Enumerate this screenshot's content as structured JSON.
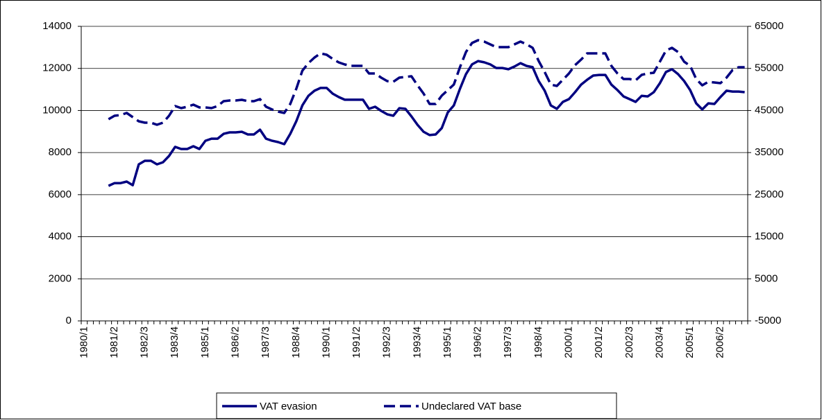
{
  "chart_data": {
    "type": "line",
    "categories": [
      "1980/1",
      null,
      null,
      null,
      null,
      "1981/2",
      null,
      null,
      null,
      null,
      "1982/3",
      null,
      null,
      null,
      null,
      "1983/4",
      null,
      null,
      null,
      null,
      "1985/1",
      null,
      null,
      null,
      null,
      "1986/2",
      null,
      null,
      null,
      null,
      "1987/3",
      null,
      null,
      null,
      null,
      "1988/4",
      null,
      null,
      null,
      null,
      "1990/1",
      null,
      null,
      null,
      null,
      "1991/2",
      null,
      null,
      null,
      null,
      "1992/3",
      null,
      null,
      null,
      null,
      "1993/4",
      null,
      null,
      null,
      null,
      "1995/1",
      null,
      null,
      null,
      null,
      "1996/2",
      null,
      null,
      null,
      null,
      "1997/3",
      null,
      null,
      null,
      null,
      "1998/4",
      null,
      null,
      null,
      null,
      "2000/1",
      null,
      null,
      null,
      null,
      "2001/2",
      null,
      null,
      null,
      null,
      "2002/3",
      null,
      null,
      null,
      null,
      "2003/4",
      null,
      null,
      null,
      null,
      "2005/1",
      null,
      null,
      null,
      null,
      "2006/2",
      null,
      null,
      null,
      null
    ],
    "series": [
      {
        "name": "VAT evasion",
        "color": "#000080",
        "axis": "y",
        "values": [
          null,
          null,
          null,
          null,
          6420,
          6550,
          6550,
          6620,
          6450,
          7440,
          7610,
          7610,
          7440,
          7540,
          7840,
          8270,
          8170,
          8170,
          8300,
          8170,
          8560,
          8660,
          8660,
          8890,
          8960,
          8960,
          8990,
          8860,
          8860,
          9090,
          8660,
          8560,
          8500,
          8400,
          8890,
          9490,
          10240,
          10700,
          10940,
          11070,
          11070,
          10800,
          10640,
          10510,
          10510,
          10510,
          10510,
          10080,
          10180,
          9980,
          9820,
          9750,
          10110,
          10080,
          9720,
          9320,
          8990,
          8830,
          8860,
          9160,
          9910,
          10240,
          11030,
          11730,
          12190,
          12350,
          12290,
          12190,
          12020,
          12020,
          11960,
          12090,
          12250,
          12120,
          12060,
          11400,
          10940,
          10240,
          10080,
          10410,
          10540,
          10870,
          11230,
          11460,
          11660,
          11690,
          11690,
          11230,
          10970,
          10670,
          10540,
          10410,
          10700,
          10670,
          10870,
          11300,
          11830,
          11960,
          11730,
          11400,
          10970,
          10340,
          10050,
          10340,
          10310,
          10640,
          10940,
          10900,
          10900,
          10870
        ]
      },
      {
        "name": "Undeclared VAT base",
        "color": "#000080",
        "axis": "y2",
        "dashed": true,
        "values": [
          null,
          null,
          null,
          null,
          42930,
          43750,
          43920,
          44410,
          43420,
          42430,
          42100,
          42100,
          41610,
          42100,
          43750,
          46060,
          45560,
          45890,
          46390,
          45730,
          45730,
          45560,
          46060,
          47210,
          47370,
          47370,
          47540,
          47210,
          47210,
          47700,
          45890,
          45230,
          44740,
          44410,
          46550,
          50170,
          54460,
          56270,
          57590,
          58570,
          58250,
          57260,
          56430,
          55940,
          55610,
          55610,
          55610,
          53800,
          53800,
          52810,
          51990,
          51820,
          52810,
          52970,
          53140,
          50990,
          49020,
          46550,
          46550,
          48530,
          49840,
          51160,
          55280,
          58900,
          61040,
          61700,
          61370,
          60710,
          60060,
          60060,
          60060,
          60710,
          61370,
          60710,
          59890,
          56760,
          54130,
          51160,
          50830,
          52320,
          53800,
          55780,
          57090,
          58570,
          58570,
          58570,
          58570,
          55610,
          53800,
          52480,
          52480,
          52150,
          53470,
          53800,
          53960,
          56600,
          59230,
          59890,
          58900,
          56600,
          55610,
          52480,
          50990,
          51820,
          51660,
          51490,
          52810,
          54620,
          55280,
          55280
        ]
      }
    ],
    "ylim": [
      0,
      14000
    ],
    "yticks": [
      0,
      2000,
      4000,
      6000,
      8000,
      10000,
      12000,
      14000
    ],
    "y2lim": [
      -5000,
      65000
    ],
    "y2ticks": [
      -5000,
      5000,
      15000,
      25000,
      35000,
      45000,
      55000,
      65000
    ],
    "grid": true,
    "legend": "bottom"
  }
}
